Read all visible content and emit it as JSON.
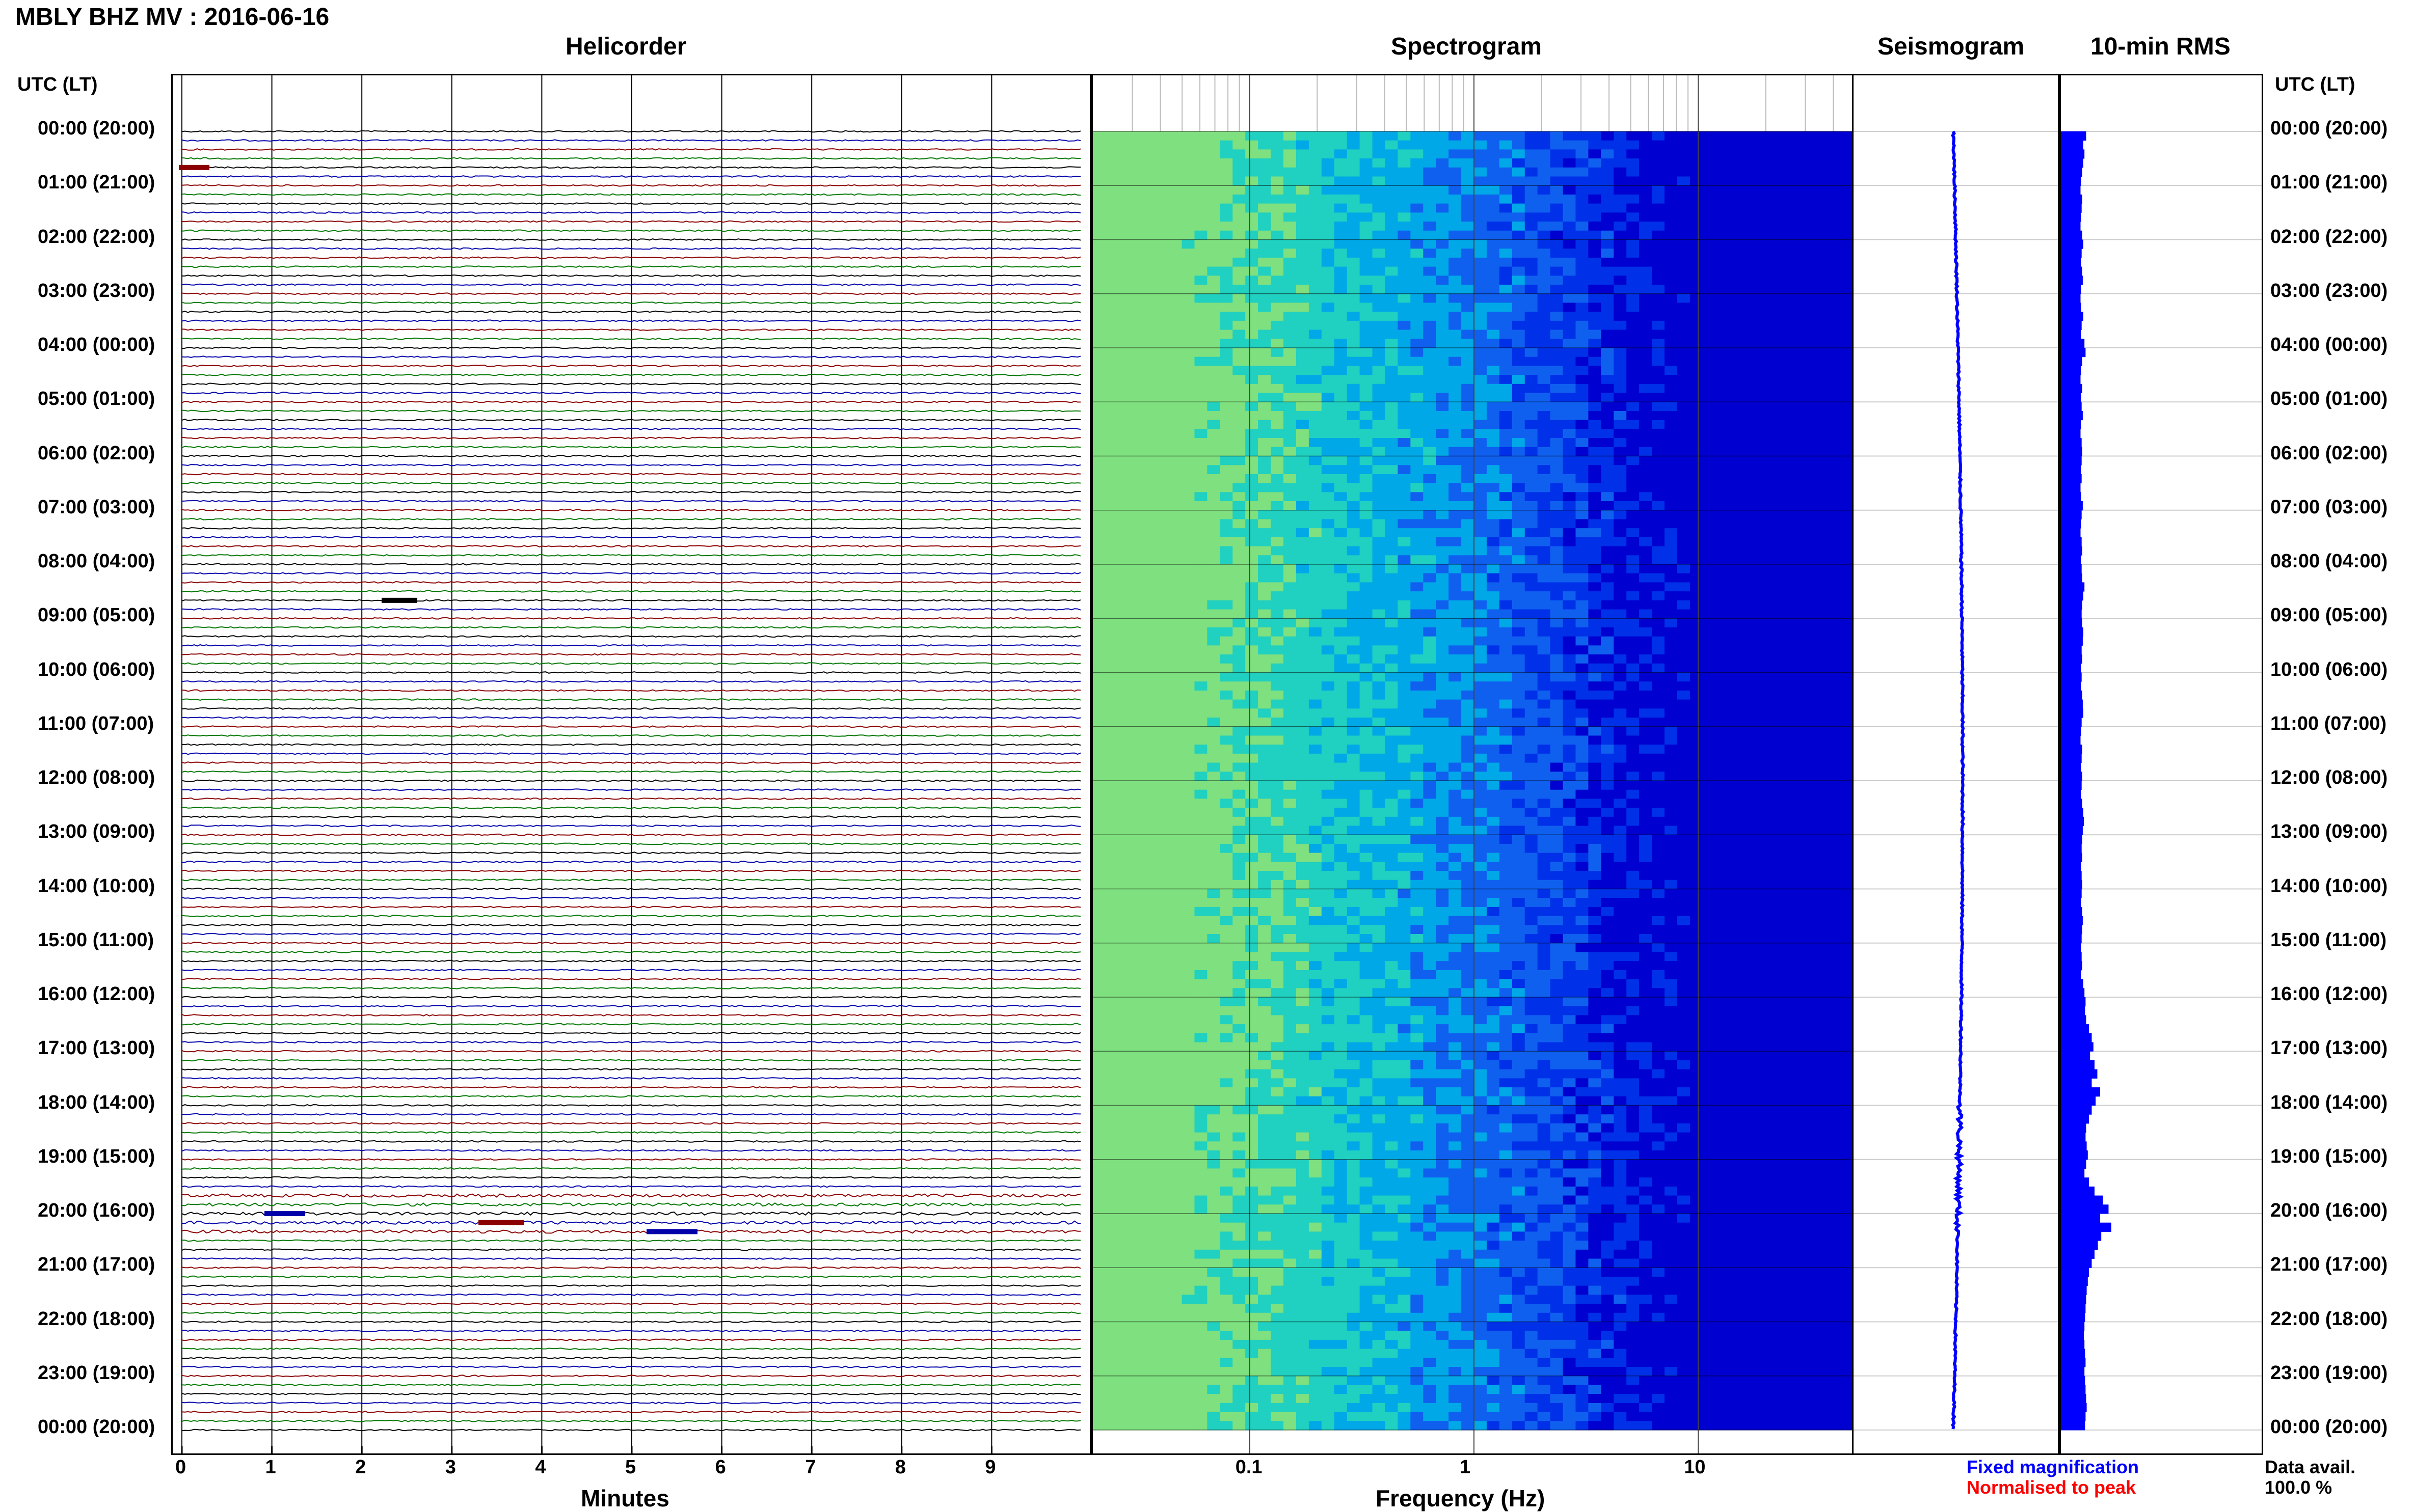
{
  "title": "MBLY BHZ MV : 2016-06-16",
  "panels": {
    "helicorder": "Helicorder",
    "spectrogram": "Spectrogram",
    "seismogram": "Seismogram",
    "rms": "10-min RMS"
  },
  "axis": {
    "left_header": "UTC (LT)",
    "right_header": "UTC (LT)",
    "minutes_label": "Minutes",
    "frequency_label": "Frequency (Hz)"
  },
  "legend": {
    "fixed": "Fixed magnification",
    "normalised": "Normalised to peak",
    "fixed_color": "#0000ff",
    "normalised_color": "#ff0000"
  },
  "data_avail": {
    "label": "Data avail.",
    "value": "100.0 %"
  },
  "colors": {
    "trace_cycle": [
      "#000000",
      "#0000aa",
      "#8b0000",
      "#007700"
    ],
    "spectrogram_low": "#7fe07f",
    "spectrogram_mid": "#00b0e0",
    "spectrogram_high": "#0000e0",
    "rms_bar": "#0000ff"
  },
  "chart_data": {
    "type": "heatmap",
    "time_ticks": [
      "00:00 (20:00)",
      "01:00 (21:00)",
      "02:00 (22:00)",
      "03:00 (23:00)",
      "04:00 (00:00)",
      "05:00 (01:00)",
      "06:00 (02:00)",
      "07:00 (03:00)",
      "08:00 (04:00)",
      "09:00 (05:00)",
      "10:00 (06:00)",
      "11:00 (07:00)",
      "12:00 (08:00)",
      "13:00 (09:00)",
      "14:00 (10:00)",
      "15:00 (11:00)",
      "16:00 (12:00)",
      "17:00 (13:00)",
      "18:00 (14:00)",
      "19:00 (15:00)",
      "20:00 (16:00)",
      "21:00 (17:00)",
      "22:00 (18:00)",
      "23:00 (19:00)",
      "00:00 (20:00)"
    ],
    "minutes_ticks": [
      "0",
      "1",
      "2",
      "3",
      "4",
      "5",
      "6",
      "7",
      "8",
      "9"
    ],
    "minutes_range": [
      0,
      10
    ],
    "frequency_ticks": [
      "0.1",
      "1",
      "10"
    ],
    "frequency_range": [
      0.02,
      50
    ],
    "frequency_scale": "log",
    "rows_per_hour": 6,
    "rms_10min_relative": [
      0.45,
      0.4,
      0.42,
      0.4,
      0.38,
      0.36,
      0.35,
      0.38,
      0.37,
      0.36,
      0.35,
      0.38,
      0.4,
      0.37,
      0.36,
      0.38,
      0.39,
      0.36,
      0.35,
      0.36,
      0.4,
      0.37,
      0.36,
      0.42,
      0.44,
      0.38,
      0.36,
      0.35,
      0.38,
      0.36,
      0.37,
      0.39,
      0.36,
      0.35,
      0.37,
      0.38,
      0.37,
      0.36,
      0.37,
      0.35,
      0.36,
      0.39,
      0.37,
      0.36,
      0.35,
      0.37,
      0.38,
      0.36,
      0.37,
      0.38,
      0.42,
      0.4,
      0.38,
      0.37,
      0.38,
      0.4,
      0.39,
      0.37,
      0.38,
      0.36,
      0.37,
      0.36,
      0.38,
      0.39,
      0.4,
      0.37,
      0.36,
      0.35,
      0.38,
      0.37,
      0.36,
      0.38,
      0.37,
      0.36,
      0.38,
      0.4,
      0.41,
      0.39,
      0.38,
      0.37,
      0.38,
      0.36,
      0.37,
      0.38,
      0.37,
      0.36,
      0.38,
      0.39,
      0.38,
      0.37,
      0.36,
      0.37,
      0.38,
      0.36,
      0.4,
      0.42,
      0.44,
      0.43,
      0.45,
      0.5,
      0.55,
      0.58,
      0.52,
      0.6,
      0.65,
      0.55,
      0.7,
      0.62,
      0.55,
      0.5,
      0.45,
      0.44,
      0.46,
      0.48,
      0.45,
      0.42,
      0.5,
      0.6,
      0.75,
      0.85,
      0.7,
      0.9,
      0.72,
      0.66,
      0.6,
      0.55,
      0.5,
      0.48,
      0.46,
      0.45,
      0.44,
      0.43,
      0.42,
      0.41,
      0.42,
      0.43,
      0.44,
      0.42,
      0.43,
      0.44,
      0.45,
      0.46,
      0.44,
      0.43
    ]
  }
}
